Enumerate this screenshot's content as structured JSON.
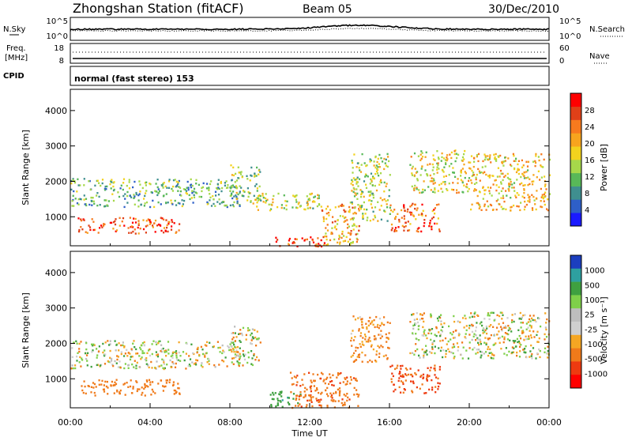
{
  "header": {
    "station": "Zhongshan Station (fitACF)",
    "beam": "Beam 05",
    "date": "30/Dec/2010"
  },
  "noise_panel": {
    "left_label": "N.Sky",
    "left_ticks": [
      "10^5",
      "10^0"
    ],
    "right_label": "N.Search",
    "right_ticks": [
      "10^5",
      "10^0"
    ]
  },
  "freq_panel": {
    "left_label_line1": "Freq.",
    "left_label_line2": "[MHz]",
    "left_ticks": [
      "18",
      "8"
    ],
    "right_label": "Nave",
    "right_ticks": [
      "60",
      "0"
    ]
  },
  "cpid_panel": {
    "label": "CPID",
    "mode_text": "normal (fast stereo) 153"
  },
  "chart_data": [
    {
      "type": "heatmap",
      "panel": "power",
      "ylabel": "Slant Range [km]",
      "xlabel": "Time UT",
      "xlim_hours": [
        0,
        24
      ],
      "ylim_km": [
        180,
        4600
      ],
      "y_ticks": [
        "1000",
        "2000",
        "3000",
        "4000"
      ],
      "colorbar": {
        "label": "Power [dB]",
        "ticks": [
          "4",
          "8",
          "12",
          "16",
          "20",
          "24",
          "28"
        ],
        "colors": [
          "#1a1aff",
          "#2e5fc8",
          "#3f8f8f",
          "#58b858",
          "#a6d84a",
          "#f2d21e",
          "#f7a41e",
          "#f77a1e",
          "#e04018",
          "#ff0000"
        ]
      },
      "echo_regions": [
        {
          "t_start": 0.0,
          "t_end": 8.5,
          "range_min": 1300,
          "range_max": 2100,
          "power_db": 10
        },
        {
          "t_start": 0.3,
          "t_end": 5.5,
          "range_min": 550,
          "range_max": 1000,
          "power_db": 26
        },
        {
          "t_start": 8.0,
          "t_end": 9.5,
          "range_min": 1400,
          "range_max": 2500,
          "power_db": 12
        },
        {
          "t_start": 9.0,
          "t_end": 12.5,
          "range_min": 1200,
          "range_max": 1700,
          "power_db": 14
        },
        {
          "t_start": 10.0,
          "t_end": 12.8,
          "range_min": 180,
          "range_max": 450,
          "power_db": 28
        },
        {
          "t_start": 12.5,
          "t_end": 14.5,
          "range_min": 200,
          "range_max": 1400,
          "power_db": 20
        },
        {
          "t_start": 14.0,
          "t_end": 16.0,
          "range_min": 900,
          "range_max": 2800,
          "power_db": 14
        },
        {
          "t_start": 16.0,
          "t_end": 18.5,
          "range_min": 600,
          "range_max": 1400,
          "power_db": 24
        },
        {
          "t_start": 17.0,
          "t_end": 20.0,
          "range_min": 1700,
          "range_max": 2900,
          "power_db": 16
        },
        {
          "t_start": 20.0,
          "t_end": 24.0,
          "range_min": 1200,
          "range_max": 2800,
          "power_db": 18
        }
      ]
    },
    {
      "type": "heatmap",
      "panel": "velocity",
      "ylabel": "Slant Range [km]",
      "xlabel": "Time UT",
      "xlim_hours": [
        0,
        24
      ],
      "ylim_km": [
        180,
        4600
      ],
      "y_ticks": [
        "1000",
        "2000",
        "3000",
        "4000"
      ],
      "x_ticks": [
        "00:00",
        "04:00",
        "08:00",
        "12:00",
        "16:00",
        "20:00",
        "00:00"
      ],
      "colorbar": {
        "label": "Velocity [m s⁻¹]",
        "ticks": [
          "1000",
          "500",
          "100",
          "25",
          "-25",
          "-100",
          "-500",
          "-1000"
        ],
        "colors": [
          "#1c3fbf",
          "#2ea0a0",
          "#3fa040",
          "#7fd04a",
          "#bebebe",
          "#cfcfcf",
          "#f5a623",
          "#f07a1a",
          "#ee3a10",
          "#ff0000"
        ]
      },
      "echo_regions": [
        {
          "t_start": 0.0,
          "t_end": 8.5,
          "range_min": 1300,
          "range_max": 2100,
          "velocity": 0
        },
        {
          "t_start": 0.3,
          "t_end": 5.5,
          "range_min": 550,
          "range_max": 1000,
          "velocity": -300
        },
        {
          "t_start": 8.0,
          "t_end": 9.5,
          "range_min": 1400,
          "range_max": 2500,
          "velocity": 0
        },
        {
          "t_start": 10.0,
          "t_end": 11.5,
          "range_min": 180,
          "range_max": 700,
          "velocity": 400
        },
        {
          "t_start": 11.0,
          "t_end": 14.5,
          "range_min": 200,
          "range_max": 1200,
          "velocity": -400
        },
        {
          "t_start": 14.0,
          "t_end": 16.0,
          "range_min": 1500,
          "range_max": 2800,
          "velocity": -150
        },
        {
          "t_start": 16.0,
          "t_end": 18.5,
          "range_min": 600,
          "range_max": 1400,
          "velocity": -500
        },
        {
          "t_start": 17.0,
          "t_end": 24.0,
          "range_min": 1600,
          "range_max": 2900,
          "velocity": 0
        }
      ]
    }
  ]
}
